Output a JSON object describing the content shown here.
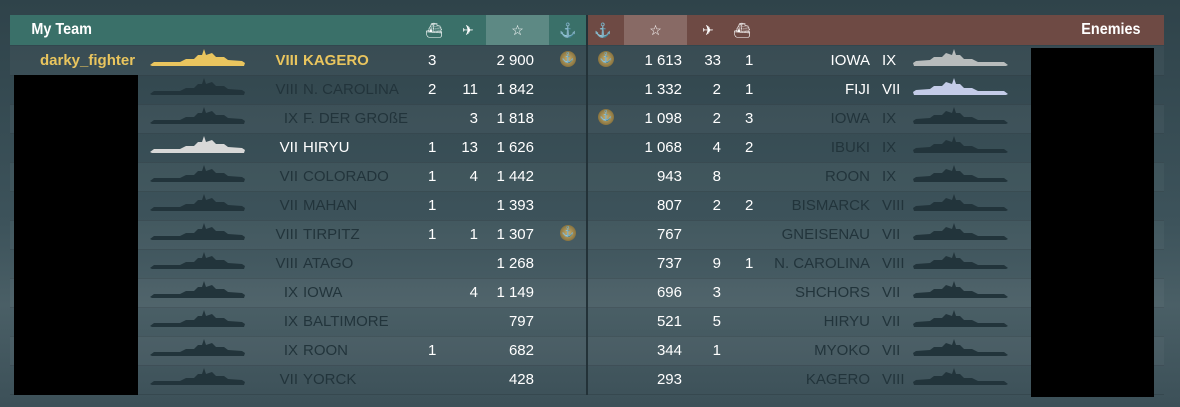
{
  "my_team": {
    "title": "My Team",
    "player": "darky_fighter",
    "columns": {
      "kills_icon": "sunk-ship-icon",
      "planes_icon": "plane-shot-down-icon",
      "xp_icon": "star-icon",
      "medal_icon": "anchor-medal-icon"
    },
    "rows": [
      {
        "tier": "VIII",
        "ship": "KAGERO",
        "kills": "3",
        "planes": "",
        "xp": "2 900",
        "medal": true,
        "state": "me"
      },
      {
        "tier": "VIII",
        "ship": "N. CAROLINA",
        "kills": "2",
        "planes": "11",
        "xp": "1 842",
        "medal": false,
        "state": "dead"
      },
      {
        "tier": "IX",
        "ship": "F. DER GROßE",
        "kills": "",
        "planes": "3",
        "xp": "1 818",
        "medal": false,
        "state": "dead"
      },
      {
        "tier": "VII",
        "ship": "HIRYU",
        "kills": "1",
        "planes": "13",
        "xp": "1 626",
        "medal": false,
        "state": "alive"
      },
      {
        "tier": "VII",
        "ship": "COLORADO",
        "kills": "1",
        "planes": "4",
        "xp": "1 442",
        "medal": false,
        "state": "dead"
      },
      {
        "tier": "VII",
        "ship": "MAHAN",
        "kills": "1",
        "planes": "",
        "xp": "1 393",
        "medal": false,
        "state": "dead"
      },
      {
        "tier": "VIII",
        "ship": "TIRPITZ",
        "kills": "1",
        "planes": "1",
        "xp": "1 307",
        "medal": true,
        "state": "dead"
      },
      {
        "tier": "VIII",
        "ship": "ATAGO",
        "kills": "",
        "planes": "",
        "xp": "1 268",
        "medal": false,
        "state": "dead"
      },
      {
        "tier": "IX",
        "ship": "IOWA",
        "kills": "",
        "planes": "4",
        "xp": "1 149",
        "medal": false,
        "state": "dead"
      },
      {
        "tier": "IX",
        "ship": "BALTIMORE",
        "kills": "",
        "planes": "",
        "xp": "797",
        "medal": false,
        "state": "dead"
      },
      {
        "tier": "IX",
        "ship": "ROON",
        "kills": "1",
        "planes": "",
        "xp": "682",
        "medal": false,
        "state": "dead"
      },
      {
        "tier": "VII",
        "ship": "YORCK",
        "kills": "",
        "planes": "",
        "xp": "428",
        "medal": false,
        "state": "dead"
      }
    ]
  },
  "enemies": {
    "title": "Enemies",
    "rows": [
      {
        "tier": "IX",
        "ship": "IOWA",
        "kills": "1",
        "planes": "33",
        "xp": "1 613",
        "medal": true,
        "state": "alive",
        "color": "#b8bcbc"
      },
      {
        "tier": "VII",
        "ship": "FIJI",
        "kills": "1",
        "planes": "2",
        "xp": "1 332",
        "medal": false,
        "state": "alive",
        "color": "#c4cce8"
      },
      {
        "tier": "IX",
        "ship": "IOWA",
        "kills": "3",
        "planes": "2",
        "xp": "1 098",
        "medal": true,
        "state": "dead"
      },
      {
        "tier": "IX",
        "ship": "IBUKI",
        "kills": "2",
        "planes": "4",
        "xp": "1 068",
        "medal": false,
        "state": "dead"
      },
      {
        "tier": "IX",
        "ship": "ROON",
        "kills": "",
        "planes": "8",
        "xp": "943",
        "medal": false,
        "state": "dead"
      },
      {
        "tier": "VIII",
        "ship": "BISMARCK",
        "kills": "2",
        "planes": "2",
        "xp": "807",
        "medal": false,
        "state": "dead"
      },
      {
        "tier": "VII",
        "ship": "GNEISENAU",
        "kills": "",
        "planes": "",
        "xp": "767",
        "medal": false,
        "state": "dead"
      },
      {
        "tier": "VIII",
        "ship": "N. CAROLINA",
        "kills": "1",
        "planes": "9",
        "xp": "737",
        "medal": false,
        "state": "dead"
      },
      {
        "tier": "VII",
        "ship": "SHCHORS",
        "kills": "",
        "planes": "3",
        "xp": "696",
        "medal": false,
        "state": "dead"
      },
      {
        "tier": "VII",
        "ship": "HIRYU",
        "kills": "",
        "planes": "5",
        "xp": "521",
        "medal": false,
        "state": "dead"
      },
      {
        "tier": "VII",
        "ship": "MYOKO",
        "kills": "",
        "planes": "1",
        "xp": "344",
        "medal": false,
        "state": "dead"
      },
      {
        "tier": "VIII",
        "ship": "KAGERO",
        "kills": "",
        "planes": "",
        "xp": "293",
        "medal": false,
        "state": "dead"
      }
    ]
  },
  "colors": {
    "my_header": "#3a7069",
    "enemy_header": "#6e4a44",
    "player": "#e9c55e",
    "dead_text": "#22343b"
  }
}
